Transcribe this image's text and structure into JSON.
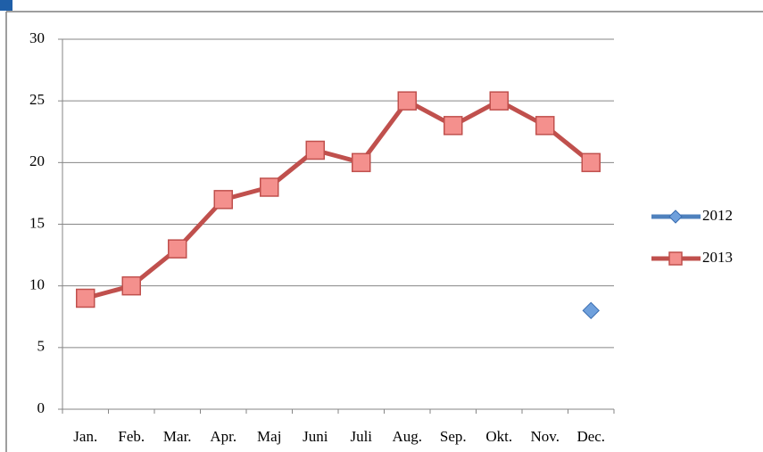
{
  "chart_data": {
    "type": "line",
    "categories": [
      "Jan.",
      "Feb.",
      "Mar.",
      "Apr.",
      "Maj",
      "Juni",
      "Juli",
      "Aug.",
      "Sep.",
      "Okt.",
      "Nov.",
      "Dec."
    ],
    "series": [
      {
        "name": "2012",
        "color": "#4f81bd",
        "marker": "diamond",
        "values": [
          null,
          null,
          null,
          null,
          null,
          null,
          null,
          null,
          null,
          null,
          null,
          8
        ]
      },
      {
        "name": "2013",
        "color": "#c0504d",
        "marker": "square",
        "values": [
          9,
          10,
          13,
          17,
          18,
          21,
          20,
          25,
          23,
          25,
          23,
          20
        ]
      }
    ],
    "ylim": [
      0,
      30
    ],
    "yticks": [
      0,
      5,
      10,
      15,
      20,
      25,
      30
    ],
    "grid": true,
    "legend": "right"
  }
}
